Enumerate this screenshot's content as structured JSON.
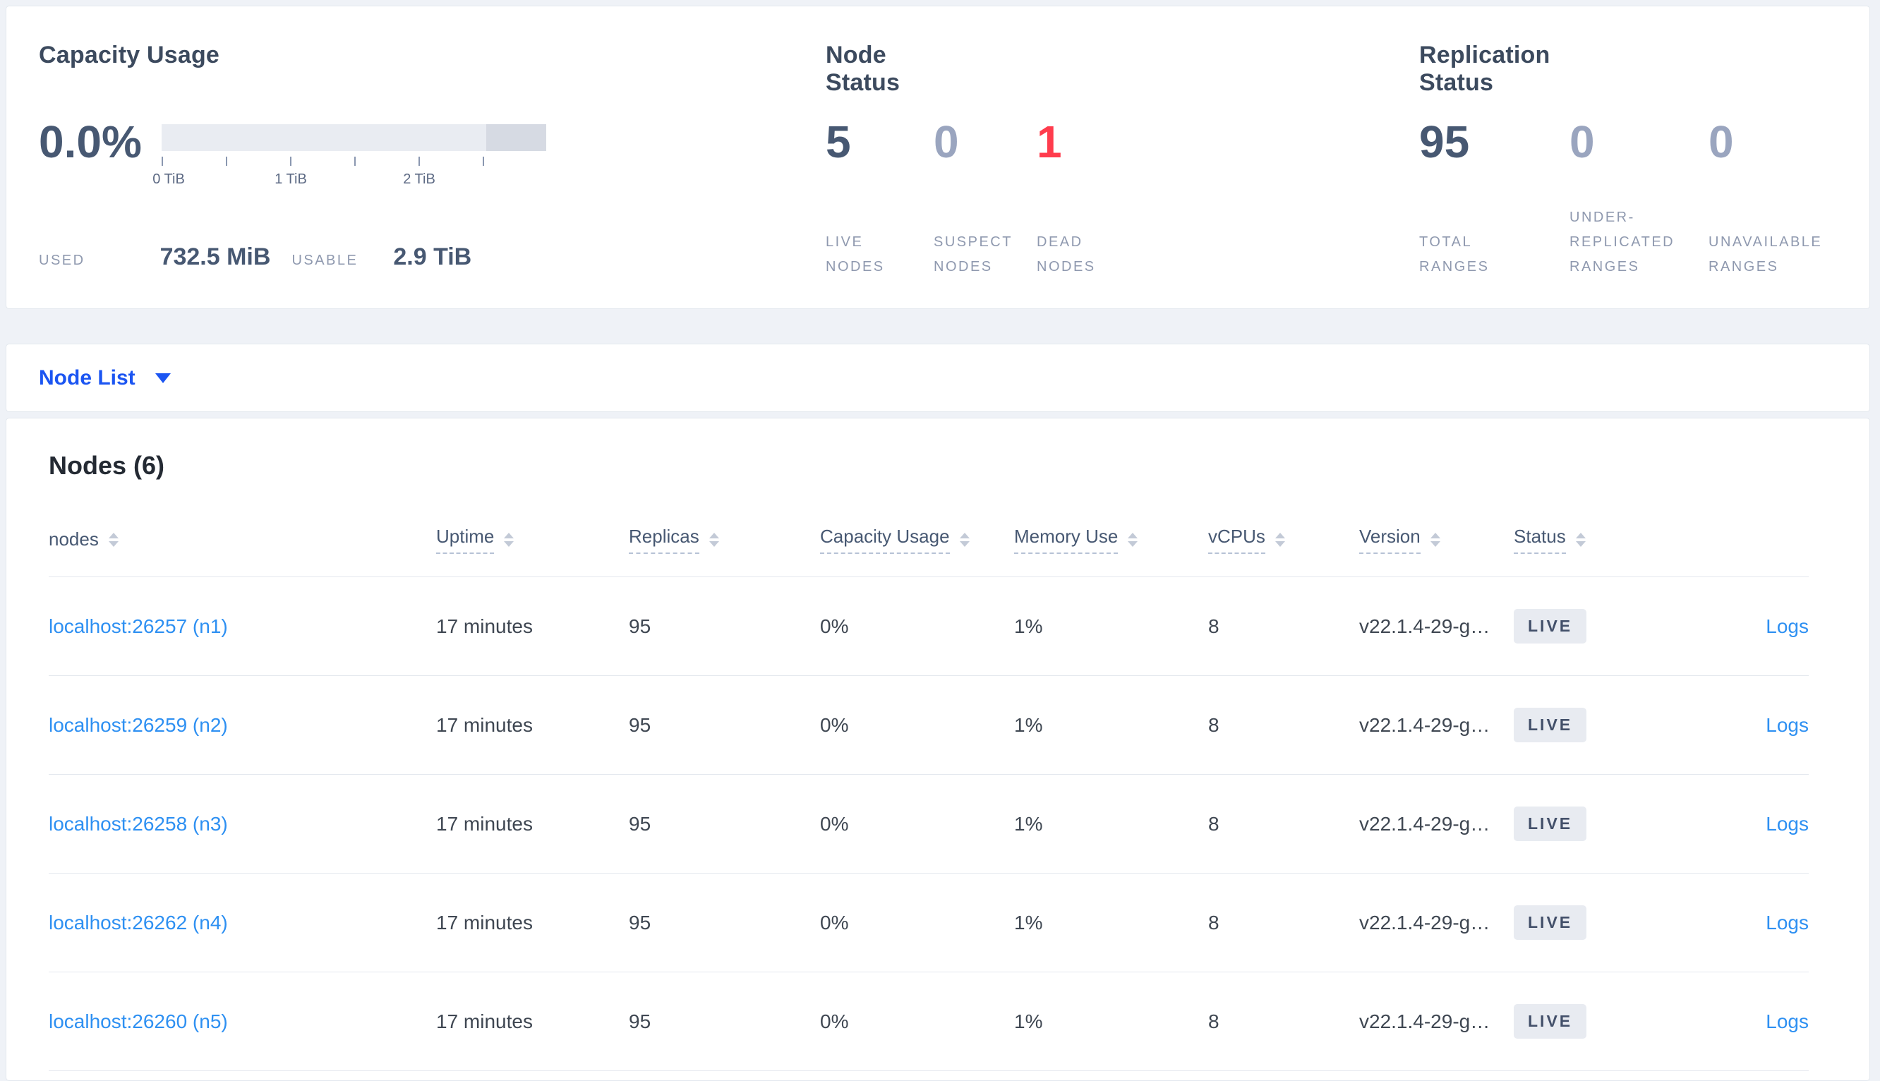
{
  "colors": {
    "page_background": "#eff2f7",
    "accent_blue": "#1b55f2",
    "link_blue": "#2e90f2",
    "danger_red": "#ff3c4d",
    "slate_dark": "#475872",
    "slate_muted": "#9aa5bf",
    "label_gray": "#8f99af",
    "bar_light": "#e9ecf2",
    "bar_dark": "#d6dae3",
    "badge_bg": "#e8ebf1"
  },
  "summary": {
    "capacity_usage": {
      "title": "Capacity Usage",
      "percent": "0.0%",
      "tick_labels": [
        "0 TiB",
        "1 TiB",
        "2 TiB"
      ],
      "used_label": "USED",
      "used_value": "732.5 MiB",
      "usable_label": "USABLE",
      "usable_value": "2.9 TiB"
    },
    "node_status": {
      "title": "Node Status",
      "stats": [
        {
          "value": "5",
          "label": "LIVE\nNODES",
          "state": "live"
        },
        {
          "value": "0",
          "label": "SUSPECT\nNODES",
          "state": "suspect"
        },
        {
          "value": "1",
          "label": "DEAD\nNODES",
          "state": "dead"
        }
      ]
    },
    "replication_status": {
      "title": "Replication Status",
      "stats": [
        {
          "value": "95",
          "label": "TOTAL\nRANGES",
          "state": "total"
        },
        {
          "value": "0",
          "label": "UNDER-\nREPLICATED\nRANGES",
          "state": "under"
        },
        {
          "value": "0",
          "label": "UNAVAILABLE\nRANGES",
          "state": "unavailable"
        }
      ]
    }
  },
  "node_list": {
    "label": "Node List"
  },
  "nodes_table": {
    "title": "Nodes (6)",
    "columns": [
      {
        "label": "nodes",
        "underlined": false
      },
      {
        "label": "Uptime",
        "underlined": true
      },
      {
        "label": "Replicas",
        "underlined": true
      },
      {
        "label": "Capacity Usage",
        "underlined": true
      },
      {
        "label": "Memory Use",
        "underlined": true
      },
      {
        "label": "vCPUs",
        "underlined": true
      },
      {
        "label": "Version",
        "underlined": true
      },
      {
        "label": "Status",
        "underlined": true
      }
    ],
    "rows": [
      {
        "address": "localhost:26257 (n1)",
        "uptime": "17 minutes",
        "replicas": "95",
        "capacity_usage": "0%",
        "memory_use": "1%",
        "vcpus": "8",
        "version": "v22.1.4-29-g…",
        "status": "LIVE",
        "logs": "Logs"
      },
      {
        "address": "localhost:26259 (n2)",
        "uptime": "17 minutes",
        "replicas": "95",
        "capacity_usage": "0%",
        "memory_use": "1%",
        "vcpus": "8",
        "version": "v22.1.4-29-g…",
        "status": "LIVE",
        "logs": "Logs"
      },
      {
        "address": "localhost:26258 (n3)",
        "uptime": "17 minutes",
        "replicas": "95",
        "capacity_usage": "0%",
        "memory_use": "1%",
        "vcpus": "8",
        "version": "v22.1.4-29-g…",
        "status": "LIVE",
        "logs": "Logs"
      },
      {
        "address": "localhost:26262 (n4)",
        "uptime": "17 minutes",
        "replicas": "95",
        "capacity_usage": "0%",
        "memory_use": "1%",
        "vcpus": "8",
        "version": "v22.1.4-29-g…",
        "status": "LIVE",
        "logs": "Logs"
      },
      {
        "address": "localhost:26260 (n5)",
        "uptime": "17 minutes",
        "replicas": "95",
        "capacity_usage": "0%",
        "memory_use": "1%",
        "vcpus": "8",
        "version": "v22.1.4-29-g…",
        "status": "LIVE",
        "logs": "Logs"
      }
    ]
  }
}
